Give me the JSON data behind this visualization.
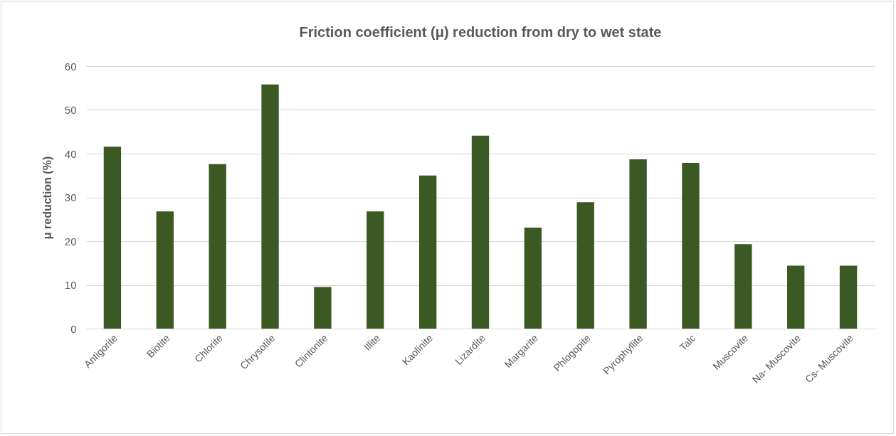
{
  "chart_data": {
    "type": "bar",
    "title": "Friction coefficient (μ) reduction from dry to wet state",
    "ylabel": "μ reduction (%)",
    "categories": [
      "Antigorite",
      "Biotite",
      "Chlorite",
      "Chrysotile",
      "Clintonite",
      "Illite",
      "Kaolinite",
      "Lizardite",
      "Margarite",
      "Phlogopite",
      "Pyrophyllite",
      "Talc",
      "Muscovite",
      "Na- Muscovite",
      "Cs- Muscovite"
    ],
    "values": [
      41.6,
      26.8,
      37.6,
      55.8,
      9.5,
      26.8,
      35.0,
      44.1,
      23.1,
      28.9,
      38.7,
      37.9,
      19.3,
      14.4,
      14.4
    ],
    "color": "#3b5a23",
    "ylim": [
      0,
      60
    ],
    "yticks": [
      0,
      10,
      20,
      30,
      40,
      50,
      60
    ],
    "grid": "y"
  }
}
